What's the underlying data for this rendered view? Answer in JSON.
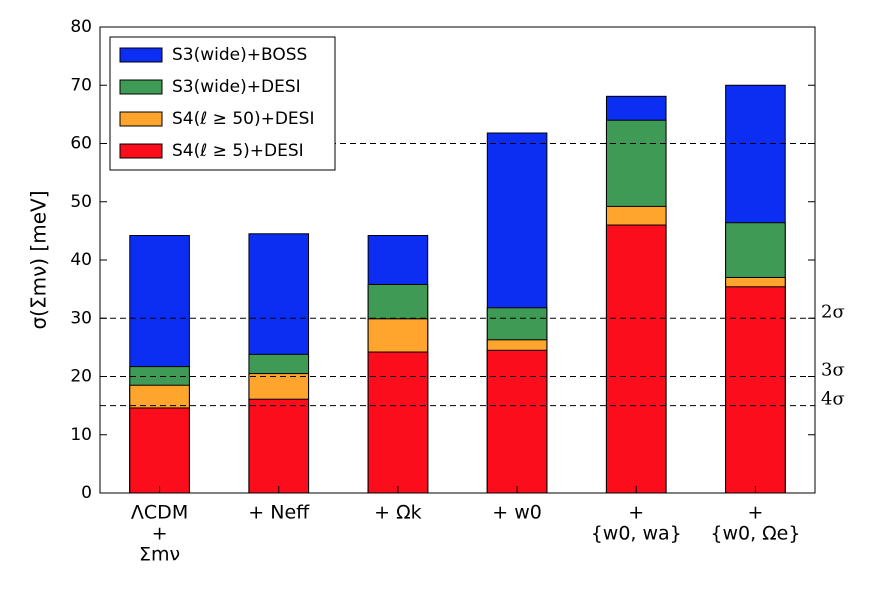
{
  "chart_data": {
    "type": "overlapping-bar",
    "ylabel": "σ(Σmν) [meV]",
    "categories": [
      [
        "ΛCDM",
        "+",
        "Σmν"
      ],
      [
        "+ Neff"
      ],
      [
        "+ Ωk"
      ],
      [
        "+ w0"
      ],
      [
        "+",
        "{w0, wa}"
      ],
      [
        "+",
        "{w0, Ωe}"
      ]
    ],
    "series": [
      {
        "name": "S3(wide)+BOSS",
        "color": "#0b2ef2",
        "values": [
          44.2,
          44.5,
          44.2,
          61.8,
          68.1,
          70.0
        ]
      },
      {
        "name": "S3(wide)+DESI",
        "color": "#3f9a55",
        "values": [
          21.7,
          23.8,
          35.8,
          31.8,
          64.0,
          46.4
        ]
      },
      {
        "name": "S4(ℓ ≥ 50)+DESI",
        "color": "#ffa42c",
        "values": [
          18.5,
          20.5,
          29.9,
          26.3,
          49.2,
          37.0
        ]
      },
      {
        "name": "S4(ℓ ≥ 5)+DESI",
        "color": "#fc0d1b",
        "values": [
          14.6,
          16.1,
          24.2,
          24.5,
          46.0,
          35.4
        ]
      }
    ],
    "ylim": [
      0,
      80
    ],
    "yticks": [
      0,
      10,
      20,
      30,
      40,
      50,
      60,
      70,
      80
    ],
    "reference_lines": [
      {
        "value": 60
      },
      {
        "value": 30,
        "label": "2σ"
      },
      {
        "value": 20,
        "label": "3σ"
      },
      {
        "value": 15,
        "label": "4σ"
      }
    ],
    "legend": "upper left"
  }
}
